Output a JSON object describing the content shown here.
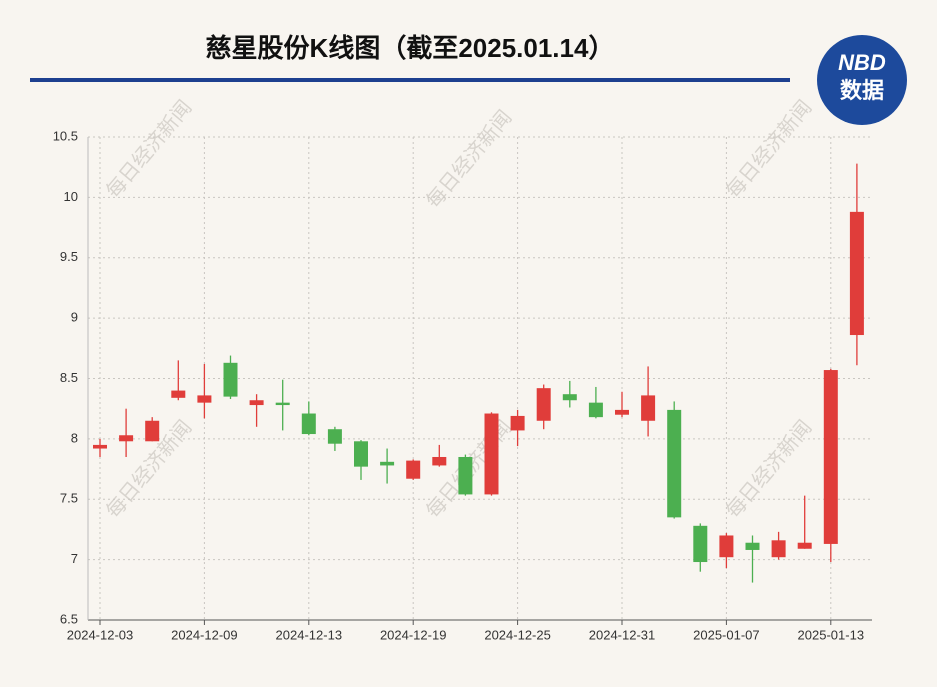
{
  "chart_data": {
    "type": "candlestick",
    "title": "慈星股份K线图（截至2025.01.14）",
    "logo": {
      "top": "NBD",
      "bottom": "数据"
    },
    "watermark": "每日经济新闻",
    "categories": [
      "2024-12-03",
      null,
      null,
      null,
      "2024-12-09",
      null,
      null,
      null,
      "2024-12-13",
      null,
      null,
      null,
      "2024-12-19",
      null,
      null,
      null,
      "2024-12-25",
      null,
      null,
      null,
      "2024-12-31",
      null,
      null,
      null,
      "2025-01-07",
      null,
      null,
      null,
      "2025-01-13",
      null
    ],
    "open": [
      7.92,
      7.98,
      7.98,
      8.34,
      8.3,
      8.63,
      8.28,
      8.3,
      8.21,
      8.08,
      7.98,
      7.81,
      7.67,
      7.78,
      7.85,
      7.54,
      8.07,
      8.15,
      8.37,
      8.3,
      8.2,
      8.15,
      8.24,
      7.28,
      7.02,
      7.14,
      7.02,
      7.09,
      7.13,
      8.86
    ],
    "high": [
      8.0,
      8.25,
      8.18,
      8.65,
      8.62,
      8.69,
      8.37,
      8.49,
      8.31,
      8.1,
      7.99,
      7.92,
      7.83,
      7.95,
      7.87,
      8.22,
      8.24,
      8.45,
      8.48,
      8.43,
      8.39,
      8.6,
      8.31,
      7.3,
      7.22,
      7.2,
      7.23,
      7.53,
      8.58,
      10.28
    ],
    "low": [
      7.85,
      7.85,
      7.98,
      8.32,
      8.17,
      8.33,
      8.1,
      8.07,
      8.03,
      7.9,
      7.66,
      7.63,
      7.66,
      7.77,
      7.53,
      7.53,
      7.94,
      8.08,
      8.26,
      8.17,
      8.18,
      8.02,
      7.34,
      6.9,
      6.93,
      6.81,
      7.0,
      7.09,
      6.98,
      8.61
    ],
    "close": [
      7.95,
      8.03,
      8.15,
      8.4,
      8.36,
      8.35,
      8.32,
      8.28,
      8.04,
      7.96,
      7.77,
      7.78,
      7.82,
      7.85,
      7.54,
      8.21,
      8.19,
      8.42,
      8.32,
      8.18,
      8.24,
      8.36,
      7.35,
      6.98,
      7.2,
      7.08,
      7.16,
      7.14,
      8.57,
      9.88
    ],
    "up_color": "#e03d3a",
    "down_color": "#4caf50",
    "ylim": [
      6.5,
      10.5
    ],
    "yticks": [
      6.5,
      7,
      7.5,
      8,
      8.5,
      9,
      9.5,
      10,
      10.5
    ],
    "grid": true
  }
}
